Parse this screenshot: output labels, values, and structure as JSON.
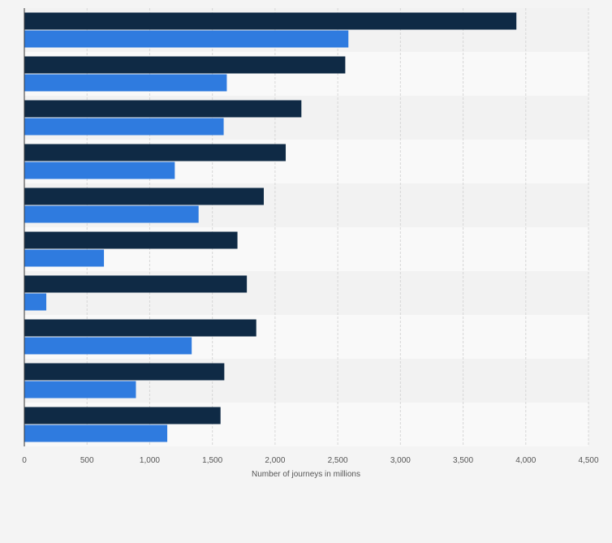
{
  "chart_data": {
    "type": "bar",
    "orientation": "horizontal",
    "categories": [
      "",
      "",
      "",
      "",
      "",
      "",
      "",
      "",
      "",
      ""
    ],
    "series": [
      {
        "color": "#0f2a45",
        "values": [
          3925,
          2560,
          2210,
          2085,
          1910,
          1700,
          1775,
          1850,
          1595,
          1565
        ]
      },
      {
        "color": "#2f7bdf",
        "values": [
          2585,
          1615,
          1590,
          1200,
          1390,
          635,
          175,
          1335,
          890,
          1140
        ]
      }
    ],
    "xlabel": "Number of journeys in millions",
    "ylabel": "",
    "xlim": [
      0,
      4500
    ],
    "xticks": [
      0,
      500,
      1000,
      1500,
      2000,
      2500,
      3000,
      3500,
      4000,
      4500
    ],
    "xtick_labels": [
      "0",
      "500",
      "1,000",
      "1,500",
      "2,000",
      "2,500",
      "3,000",
      "3,500",
      "4,000",
      "4,500"
    ],
    "grid": true,
    "band_colors": [
      "#f2f2f2",
      "#f9f9f9"
    ],
    "legend": "none"
  }
}
